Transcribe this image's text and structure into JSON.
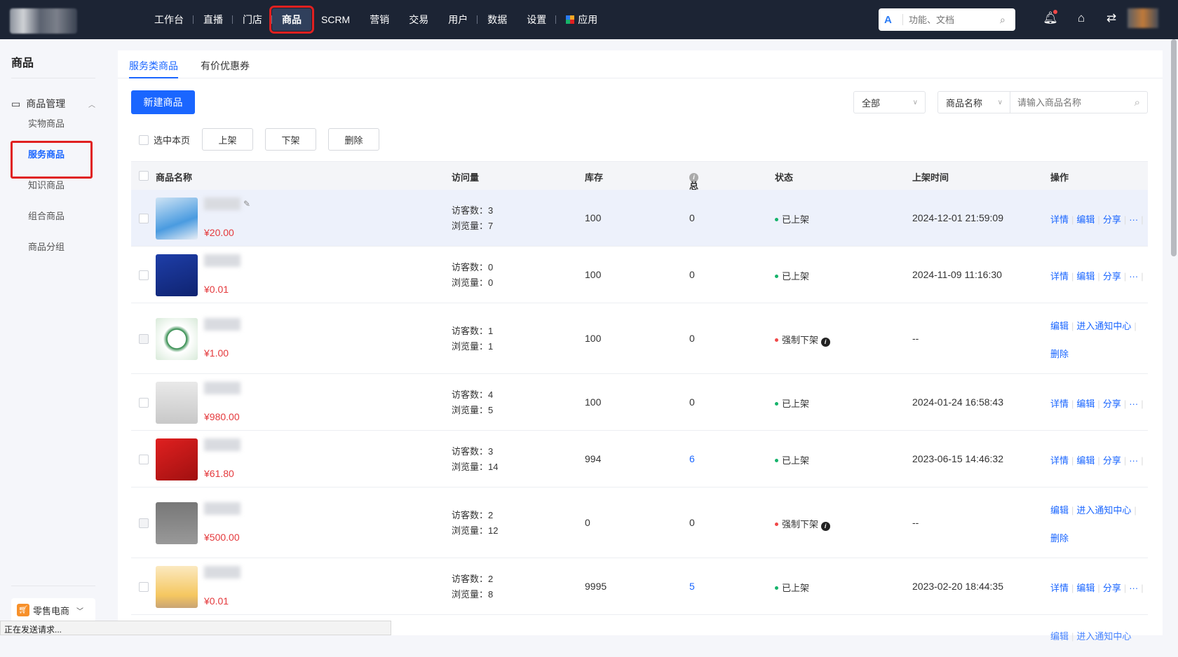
{
  "topbar": {
    "nav": [
      "工作台",
      "直播",
      "门店",
      "商品",
      "SCRM",
      "营销",
      "交易",
      "用户",
      "数据",
      "设置",
      "应用"
    ],
    "active": "商品",
    "search_placeholder": "功能、文档",
    "search_logo": "A"
  },
  "sidebar": {
    "title": "商品",
    "group": "商品管理",
    "items": [
      "实物商品",
      "服务商品",
      "知识商品",
      "组合商品",
      "商品分组"
    ],
    "active": "服务商品",
    "business": "零售电商"
  },
  "tabs": [
    "服务类商品",
    "有价优惠券"
  ],
  "toolbar": {
    "new_button": "新建商品",
    "status_filter": "全部",
    "field_filter": "商品名称",
    "search_placeholder": "请输入商品名称",
    "select_page": "选中本页",
    "on_shelf": "上架",
    "off_shelf": "下架",
    "delete": "删除"
  },
  "table": {
    "headers": [
      "商品名称",
      "访问量",
      "库存",
      "总销量",
      "状态",
      "上架时间",
      "操作"
    ],
    "rows": [
      {
        "price": "¥20.00",
        "visitors": "访客数：3",
        "views": "浏览量：7",
        "stock": "100",
        "sales": "0",
        "status": "已上架",
        "time": "2024-12-01 21:59:09",
        "ops": [
          "详情",
          "编辑",
          "分享",
          "···"
        ]
      },
      {
        "price": "¥0.01",
        "visitors": "访客数：0",
        "views": "浏览量：0",
        "stock": "100",
        "sales": "0",
        "status": "已上架",
        "time": "2024-11-09 11:16:30",
        "ops": [
          "详情",
          "编辑",
          "分享",
          "···"
        ]
      },
      {
        "price": "¥1.00",
        "visitors": "访客数：1",
        "views": "浏览量：1",
        "stock": "100",
        "sales": "0",
        "status": "强制下架",
        "time": "--",
        "ops": [
          "编辑",
          "进入通知中心"
        ],
        "ops2": "删除"
      },
      {
        "price": "¥980.00",
        "visitors": "访客数：4",
        "views": "浏览量：5",
        "stock": "100",
        "sales": "0",
        "status": "已上架",
        "time": "2024-01-24 16:58:43",
        "ops": [
          "详情",
          "编辑",
          "分享",
          "···"
        ]
      },
      {
        "price": "¥61.80",
        "visitors": "访客数：3",
        "views": "浏览量：14",
        "stock": "994",
        "sales": "6",
        "status": "已上架",
        "time": "2023-06-15 14:46:32",
        "ops": [
          "详情",
          "编辑",
          "分享",
          "···"
        ]
      },
      {
        "price": "¥500.00",
        "visitors": "访客数：2",
        "views": "浏览量：12",
        "stock": "0",
        "sales": "0",
        "status": "强制下架",
        "time": "--",
        "ops": [
          "编辑",
          "进入通知中心"
        ],
        "ops2": "删除"
      },
      {
        "price": "¥0.01",
        "visitors": "访客数：2",
        "views": "浏览量：8",
        "stock": "9995",
        "sales": "5",
        "status": "已上架",
        "time": "2023-02-20 18:44:35",
        "ops": [
          "详情",
          "编辑",
          "分享",
          "···"
        ]
      }
    ]
  },
  "status_bar": "正在发送请求...",
  "colors": {
    "accent": "#1a66ff",
    "price": "#e4393c",
    "on": "#16b36b",
    "off": "#f04848",
    "topbar": "#1c2434"
  }
}
